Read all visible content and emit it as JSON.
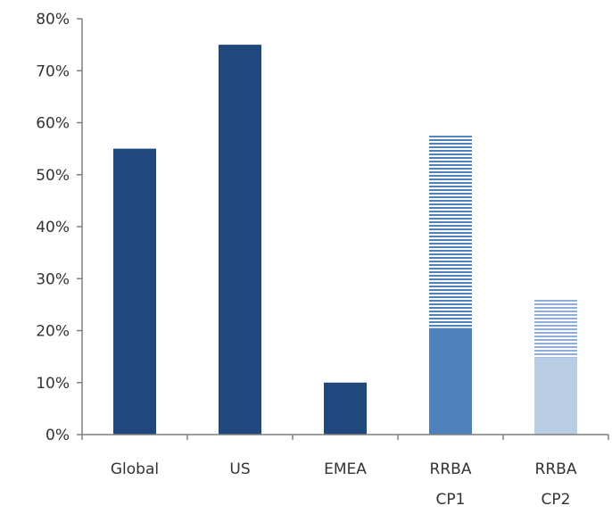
{
  "chart_data": {
    "type": "bar",
    "title": "",
    "xlabel": "",
    "ylabel": "",
    "ylim": [
      0,
      80
    ],
    "yticks": [
      0,
      10,
      20,
      30,
      40,
      50,
      60,
      70,
      80
    ],
    "ytick_suffix": "%",
    "grid": false,
    "categories": [
      {
        "lines": [
          "Global"
        ]
      },
      {
        "lines": [
          "US"
        ]
      },
      {
        "lines": [
          "EMEA"
        ]
      },
      {
        "lines": [
          "RRBA",
          "CP1"
        ]
      },
      {
        "lines": [
          "RRBA",
          "CP2"
        ]
      }
    ],
    "bars": [
      {
        "category": "Global",
        "solid": 55,
        "hatched_top": null,
        "color": "#1f497d",
        "hatch_color": null
      },
      {
        "category": "US",
        "solid": 75,
        "hatched_top": null,
        "color": "#1f497d",
        "hatch_color": null
      },
      {
        "category": "EMEA",
        "solid": 10,
        "hatched_top": null,
        "color": "#1f497d",
        "hatch_color": null
      },
      {
        "category": "RRBA CP1",
        "solid": 20.5,
        "hatched_top": 57.5,
        "color": "#4f81bd",
        "hatch_color": "#4f81bd"
      },
      {
        "category": "RRBA CP2",
        "solid": 14.8,
        "hatched_top": 26,
        "color": "#b9cde5",
        "hatch_color": "#8eaedb"
      }
    ],
    "axis_color": "#7f7f7f"
  }
}
